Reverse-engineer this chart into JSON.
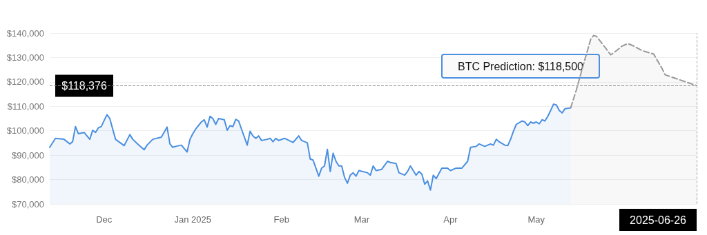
{
  "chart_data": {
    "type": "area",
    "xlim": [
      "2024-11-12",
      "2025-06-26"
    ],
    "xticks": [
      {
        "value": "2024-12-01",
        "label": "Dec"
      },
      {
        "value": "2025-01-01",
        "label": "Jan 2025"
      },
      {
        "value": "2025-02-01",
        "label": "Feb"
      },
      {
        "value": "2025-03-01",
        "label": "Mar"
      },
      {
        "value": "2025-04-01",
        "label": "Apr"
      },
      {
        "value": "2025-05-01",
        "label": "May"
      }
    ],
    "ylim": [
      70000,
      140000
    ],
    "yticks": [
      {
        "value": 70000,
        "label": "$70,000"
      },
      {
        "value": 80000,
        "label": "$80,000"
      },
      {
        "value": 90000,
        "label": "$90,000"
      },
      {
        "value": 100000,
        "label": "$100,000"
      },
      {
        "value": 110000,
        "label": "$110,000"
      },
      {
        "value": 120000,
        "label": "$120,000"
      },
      {
        "value": 130000,
        "label": "$130,000"
      },
      {
        "value": 140000,
        "label": "$140,000"
      }
    ],
    "grid": "y",
    "legend": false,
    "marker": "none",
    "series": [
      {
        "color": "#4a8fe0",
        "line_style": "solid",
        "x": [
          "2024-11-12",
          "2024-11-14",
          "2024-11-17",
          "2024-11-19",
          "2024-11-20",
          "2024-11-21",
          "2024-11-22",
          "2024-11-24",
          "2024-11-26",
          "2024-11-27",
          "2024-11-28",
          "2024-11-29",
          "2024-11-30",
          "2024-12-02",
          "2024-12-03",
          "2024-12-04",
          "2024-12-05",
          "2024-12-08",
          "2024-12-10",
          "2024-12-11",
          "2024-12-13",
          "2024-12-15",
          "2024-12-16",
          "2024-12-18",
          "2024-12-21",
          "2024-12-23",
          "2024-12-24",
          "2024-12-25",
          "2024-12-26",
          "2024-12-28",
          "2024-12-30",
          "2024-12-31",
          "2025-01-01",
          "2025-01-02",
          "2025-01-04",
          "2025-01-05",
          "2025-01-06",
          "2025-01-07",
          "2025-01-08",
          "2025-01-09",
          "2025-01-10",
          "2025-01-12",
          "2025-01-13",
          "2025-01-14",
          "2025-01-15",
          "2025-01-16",
          "2025-01-17",
          "2025-01-18",
          "2025-01-20",
          "2025-01-21",
          "2025-01-22",
          "2025-01-23",
          "2025-01-24",
          "2025-01-25",
          "2025-01-27",
          "2025-01-28",
          "2025-01-29",
          "2025-01-30",
          "2025-01-31",
          "2025-02-02",
          "2025-02-05",
          "2025-02-07",
          "2025-02-08",
          "2025-02-10",
          "2025-02-11",
          "2025-02-12",
          "2025-02-13",
          "2025-02-14",
          "2025-02-15",
          "2025-02-16",
          "2025-02-17",
          "2025-02-18",
          "2025-02-19",
          "2025-02-20",
          "2025-02-21",
          "2025-02-22",
          "2025-02-23",
          "2025-02-24",
          "2025-02-25",
          "2025-02-26",
          "2025-02-27",
          "2025-02-28",
          "2025-03-03",
          "2025-03-04",
          "2025-03-05",
          "2025-03-06",
          "2025-03-08",
          "2025-03-10",
          "2025-03-11",
          "2025-03-13",
          "2025-03-14",
          "2025-03-16",
          "2025-03-17",
          "2025-03-18",
          "2025-03-20",
          "2025-03-21",
          "2025-03-22",
          "2025-03-23",
          "2025-03-24",
          "2025-03-25",
          "2025-03-26",
          "2025-03-27",
          "2025-03-29",
          "2025-03-31",
          "2025-04-01",
          "2025-04-03",
          "2025-04-05",
          "2025-04-07",
          "2025-04-08",
          "2025-04-10",
          "2025-04-11",
          "2025-04-13",
          "2025-04-15",
          "2025-04-16",
          "2025-04-17",
          "2025-04-18",
          "2025-04-20",
          "2025-04-21",
          "2025-04-22",
          "2025-04-23",
          "2025-04-24",
          "2025-04-26",
          "2025-04-27",
          "2025-04-28",
          "2025-04-29",
          "2025-04-30",
          "2025-05-01",
          "2025-05-02",
          "2025-05-03",
          "2025-05-04",
          "2025-05-05",
          "2025-05-06",
          "2025-05-07",
          "2025-05-08",
          "2025-05-09",
          "2025-05-10",
          "2025-05-11",
          "2025-05-12",
          "2025-05-13"
        ],
        "values": [
          93200,
          96900,
          96500,
          94600,
          95500,
          101700,
          98800,
          99300,
          96500,
          100200,
          99300,
          101200,
          101700,
          106600,
          105000,
          100700,
          96500,
          93900,
          98400,
          96500,
          94300,
          92200,
          94100,
          96500,
          97400,
          101500,
          94600,
          93200,
          93600,
          94100,
          91300,
          96500,
          98800,
          100700,
          103600,
          104500,
          101500,
          105900,
          105000,
          102600,
          105000,
          104500,
          100200,
          102100,
          101700,
          104700,
          104000,
          100700,
          94100,
          99800,
          97900,
          96900,
          97900,
          96000,
          96500,
          96900,
          95500,
          96900,
          96000,
          96900,
          95200,
          97900,
          96000,
          95100,
          88400,
          88000,
          84700,
          81400,
          84700,
          85600,
          92400,
          83300,
          90800,
          87500,
          85600,
          85600,
          80900,
          78500,
          81800,
          82800,
          81400,
          83700,
          82800,
          81800,
          85600,
          83700,
          84200,
          87500,
          87000,
          86600,
          82800,
          81800,
          83300,
          85600,
          81800,
          83300,
          82300,
          78100,
          79500,
          75700,
          81800,
          80400,
          84700,
          84700,
          83700,
          84700,
          84700,
          87500,
          93200,
          93600,
          94600,
          93600,
          94600,
          94100,
          96500,
          95500,
          94100,
          93900,
          96500,
          99800,
          102600,
          104000,
          103600,
          102100,
          103600,
          103100,
          103600,
          102800,
          104500,
          104000,
          105900,
          108300,
          110900,
          110600,
          108300,
          107300,
          109000,
          109200,
          109400
        ]
      },
      {
        "color": "#999999",
        "line_style": "dashed",
        "x": [
          "2025-05-13",
          "2025-05-15",
          "2025-05-17",
          "2025-05-20",
          "2025-05-21",
          "2025-05-22",
          "2025-05-24",
          "2025-05-27",
          "2025-05-29",
          "2025-05-31",
          "2025-06-02",
          "2025-06-04",
          "2025-06-07",
          "2025-06-09",
          "2025-06-11",
          "2025-06-14",
          "2025-06-15",
          "2025-06-26"
        ],
        "values": [
          109400,
          116800,
          125300,
          137500,
          139000,
          138700,
          135700,
          131100,
          132800,
          134700,
          135700,
          134700,
          132800,
          132100,
          131400,
          125300,
          122900,
          118500
        ]
      }
    ],
    "ref_lines": [
      {
        "axis": "y",
        "value": 118376,
        "label": "$118,376",
        "line_style": "dashed",
        "color": "#888888"
      },
      {
        "axis": "x",
        "value": "2025-06-26",
        "label": "2025-06-26",
        "line_style": "dashed",
        "color": "#aaaaaa"
      }
    ],
    "annotations": [
      "BTC Prediction: $118,500"
    ]
  }
}
